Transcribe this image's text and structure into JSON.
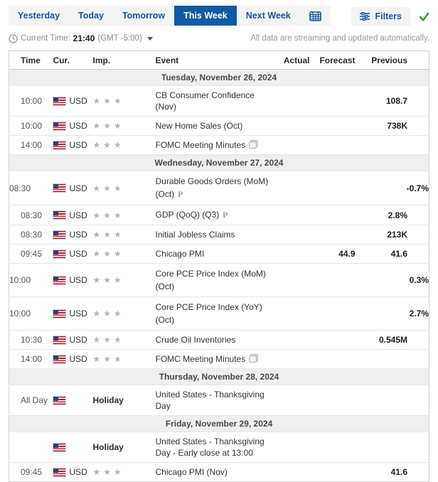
{
  "tabs": {
    "items": [
      {
        "label": "Yesterday",
        "active": false
      },
      {
        "label": "Today",
        "active": false
      },
      {
        "label": "Tomorrow",
        "active": false
      },
      {
        "label": "This Week",
        "active": true
      },
      {
        "label": "Next Week",
        "active": false
      }
    ],
    "calendar_icon": "calendar-icon"
  },
  "filters": {
    "label": "Filters",
    "icon": "sliders-icon",
    "applied_icon": "green-check-icon"
  },
  "status": {
    "clock_icon": "clock-icon",
    "current_time_label": "Current Time:",
    "time": "21:40",
    "timezone": "(GMT -5:00)",
    "streaming_note": "All data are streaming and updated automatically."
  },
  "colors": {
    "accent_blue": "#1256a0",
    "active_tab_bg": "#0f5aa5",
    "green_check": "#35a12f",
    "day_row_bg": "#efefef",
    "star_gray": "#b6b6b6"
  },
  "table": {
    "headers": [
      "Time",
      "Cur.",
      "Imp.",
      "Event",
      "Actual",
      "Forecast",
      "Previous"
    ],
    "sections": [
      {
        "date": "Tuesday, November 26, 2024",
        "rows": [
          {
            "time": "10:00",
            "flag": true,
            "cur": "USD",
            "stars": 3,
            "holiday": "",
            "event_lines": [
              "CB Consumer Confidence (Nov)"
            ],
            "preliminary": false,
            "report": false,
            "actual": "",
            "forecast": "",
            "previous": "108.7"
          },
          {
            "time": "10:00",
            "flag": true,
            "cur": "USD",
            "stars": 3,
            "holiday": "",
            "event_lines": [
              "New Home Sales (Oct)"
            ],
            "preliminary": false,
            "report": false,
            "actual": "",
            "forecast": "",
            "previous": "738K"
          },
          {
            "time": "14:00",
            "flag": true,
            "cur": "USD",
            "stars": 3,
            "holiday": "",
            "event_lines": [
              "FOMC Meeting Minutes"
            ],
            "preliminary": false,
            "report": true,
            "actual": "",
            "forecast": "",
            "previous": ""
          }
        ]
      },
      {
        "date": "Wednesday, November 27, 2024",
        "rows": [
          {
            "time": "08:30",
            "flag": true,
            "cur": "USD",
            "stars": 3,
            "holiday": "",
            "event_lines": [
              "Durable Goods Orders (MoM)",
              "(Oct)"
            ],
            "preliminary": true,
            "report": false,
            "actual": "",
            "forecast": "",
            "previous": "-0.7%"
          },
          {
            "time": "08:30",
            "flag": true,
            "cur": "USD",
            "stars": 3,
            "holiday": "",
            "event_lines": [
              "GDP (QoQ) (Q3)"
            ],
            "preliminary": true,
            "report": false,
            "actual": "",
            "forecast": "",
            "previous": "2.8%"
          },
          {
            "time": "08:30",
            "flag": true,
            "cur": "USD",
            "stars": 3,
            "holiday": "",
            "event_lines": [
              "Initial Jobless Claims"
            ],
            "preliminary": false,
            "report": false,
            "actual": "",
            "forecast": "",
            "previous": "213K"
          },
          {
            "time": "09:45",
            "flag": true,
            "cur": "USD",
            "stars": 3,
            "holiday": "",
            "event_lines": [
              "Chicago PMI"
            ],
            "preliminary": false,
            "report": false,
            "actual": "",
            "forecast": "44.9",
            "previous": "41.6"
          },
          {
            "time": "10:00",
            "flag": true,
            "cur": "USD",
            "stars": 3,
            "holiday": "",
            "event_lines": [
              "Core PCE Price Index (MoM)",
              "(Oct)"
            ],
            "preliminary": false,
            "report": false,
            "actual": "",
            "forecast": "",
            "previous": "0.3%"
          },
          {
            "time": "10:00",
            "flag": true,
            "cur": "USD",
            "stars": 3,
            "holiday": "",
            "event_lines": [
              "Core PCE Price Index (YoY)",
              "(Oct)"
            ],
            "preliminary": false,
            "report": false,
            "actual": "",
            "forecast": "",
            "previous": "2.7%"
          },
          {
            "time": "10:30",
            "flag": true,
            "cur": "USD",
            "stars": 3,
            "holiday": "",
            "event_lines": [
              "Crude Oil Inventories"
            ],
            "preliminary": false,
            "report": false,
            "actual": "",
            "forecast": "",
            "previous": "0.545M"
          },
          {
            "time": "14:00",
            "flag": true,
            "cur": "USD",
            "stars": 3,
            "holiday": "",
            "event_lines": [
              "FOMC Meeting Minutes"
            ],
            "preliminary": false,
            "report": true,
            "actual": "",
            "forecast": "",
            "previous": ""
          }
        ]
      },
      {
        "date": "Thursday, November 28, 2024",
        "rows": [
          {
            "time": "All Day",
            "flag": true,
            "cur": "",
            "stars": 0,
            "holiday": "Holiday",
            "event_lines": [
              "United States - Thanksgiving Day"
            ],
            "preliminary": false,
            "report": false,
            "actual": "",
            "forecast": "",
            "previous": ""
          }
        ]
      },
      {
        "date": "Friday, November 29, 2024",
        "rows": [
          {
            "time": "",
            "flag": true,
            "cur": "",
            "stars": 0,
            "holiday": "Holiday",
            "event_lines": [
              "United States - Thanksgiving Day - Early close at 13:00"
            ],
            "preliminary": false,
            "report": false,
            "actual": "",
            "forecast": "",
            "previous": ""
          },
          {
            "time": "09:45",
            "flag": true,
            "cur": "USD",
            "stars": 3,
            "holiday": "",
            "event_lines": [
              "Chicago PMI (Nov)"
            ],
            "preliminary": false,
            "report": false,
            "actual": "",
            "forecast": "",
            "previous": "41.6"
          }
        ]
      }
    ]
  }
}
